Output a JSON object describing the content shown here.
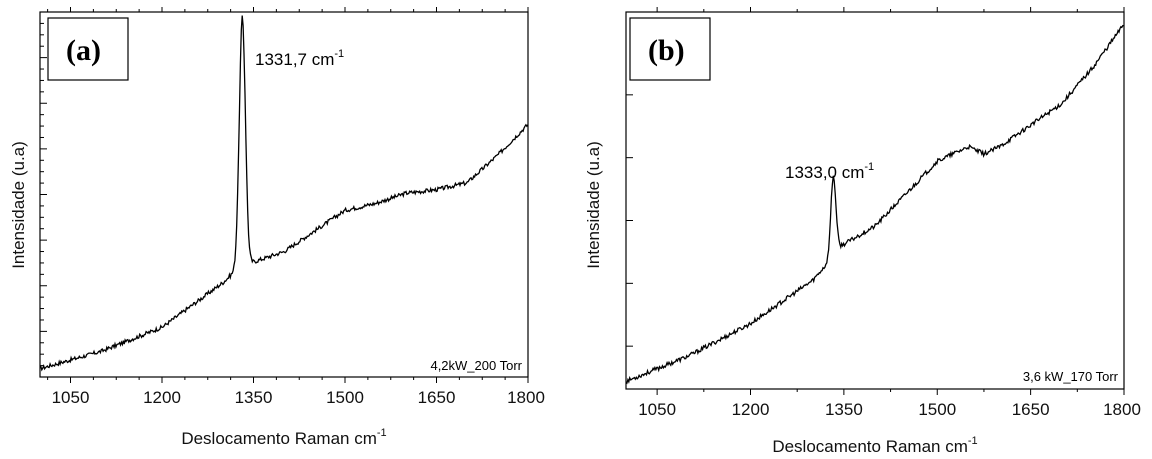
{
  "chart_data": [
    {
      "type": "line",
      "panel_label": "(a)",
      "xlabel": "Deslocamento Raman cm",
      "xlabel_sup": "-1",
      "ylabel": "Intensidade (u.a)",
      "xlim": [
        1000,
        1800
      ],
      "xticks": [
        1050,
        1200,
        1350,
        1500,
        1650,
        1800
      ],
      "ylim": [
        0,
        1
      ],
      "peak_annotation": "1331,7 cm",
      "peak_annotation_sup": "-1",
      "condition_label": "4,2kW_200 Torr",
      "peak": {
        "center": 1331.7,
        "width": 5,
        "height": 0.72
      },
      "baseline_points": [
        [
          1000,
          0.01
        ],
        [
          1100,
          0.06
        ],
        [
          1200,
          0.13
        ],
        [
          1300,
          0.26
        ],
        [
          1330,
          0.31
        ],
        [
          1350,
          0.32
        ],
        [
          1400,
          0.35
        ],
        [
          1450,
          0.41
        ],
        [
          1500,
          0.47
        ],
        [
          1550,
          0.49
        ],
        [
          1600,
          0.52
        ],
        [
          1650,
          0.53
        ],
        [
          1700,
          0.55
        ],
        [
          1750,
          0.63
        ],
        [
          1800,
          0.72
        ]
      ]
    },
    {
      "type": "line",
      "panel_label": "(b)",
      "xlabel": "Deslocamento Raman cm",
      "xlabel_sup": "-1",
      "ylabel": "Intensidade (u.a)",
      "xlim": [
        1000,
        1800
      ],
      "xticks": [
        1050,
        1200,
        1350,
        1500,
        1650,
        1800
      ],
      "ylim": [
        0,
        1
      ],
      "peak_annotation": "1333,0 cm",
      "peak_annotation_sup": "-1",
      "condition_label": "3,6 kW_170 Torr",
      "peak": {
        "center": 1333.0,
        "width": 4,
        "height": 0.22
      },
      "baseline_points": [
        [
          1000,
          0.01
        ],
        [
          1100,
          0.08
        ],
        [
          1200,
          0.17
        ],
        [
          1300,
          0.29
        ],
        [
          1330,
          0.35
        ],
        [
          1340,
          0.38
        ],
        [
          1400,
          0.44
        ],
        [
          1450,
          0.53
        ],
        [
          1500,
          0.62
        ],
        [
          1550,
          0.66
        ],
        [
          1575,
          0.64
        ],
        [
          1600,
          0.66
        ],
        [
          1650,
          0.72
        ],
        [
          1700,
          0.78
        ],
        [
          1750,
          0.88
        ],
        [
          1800,
          1.0
        ]
      ]
    }
  ]
}
